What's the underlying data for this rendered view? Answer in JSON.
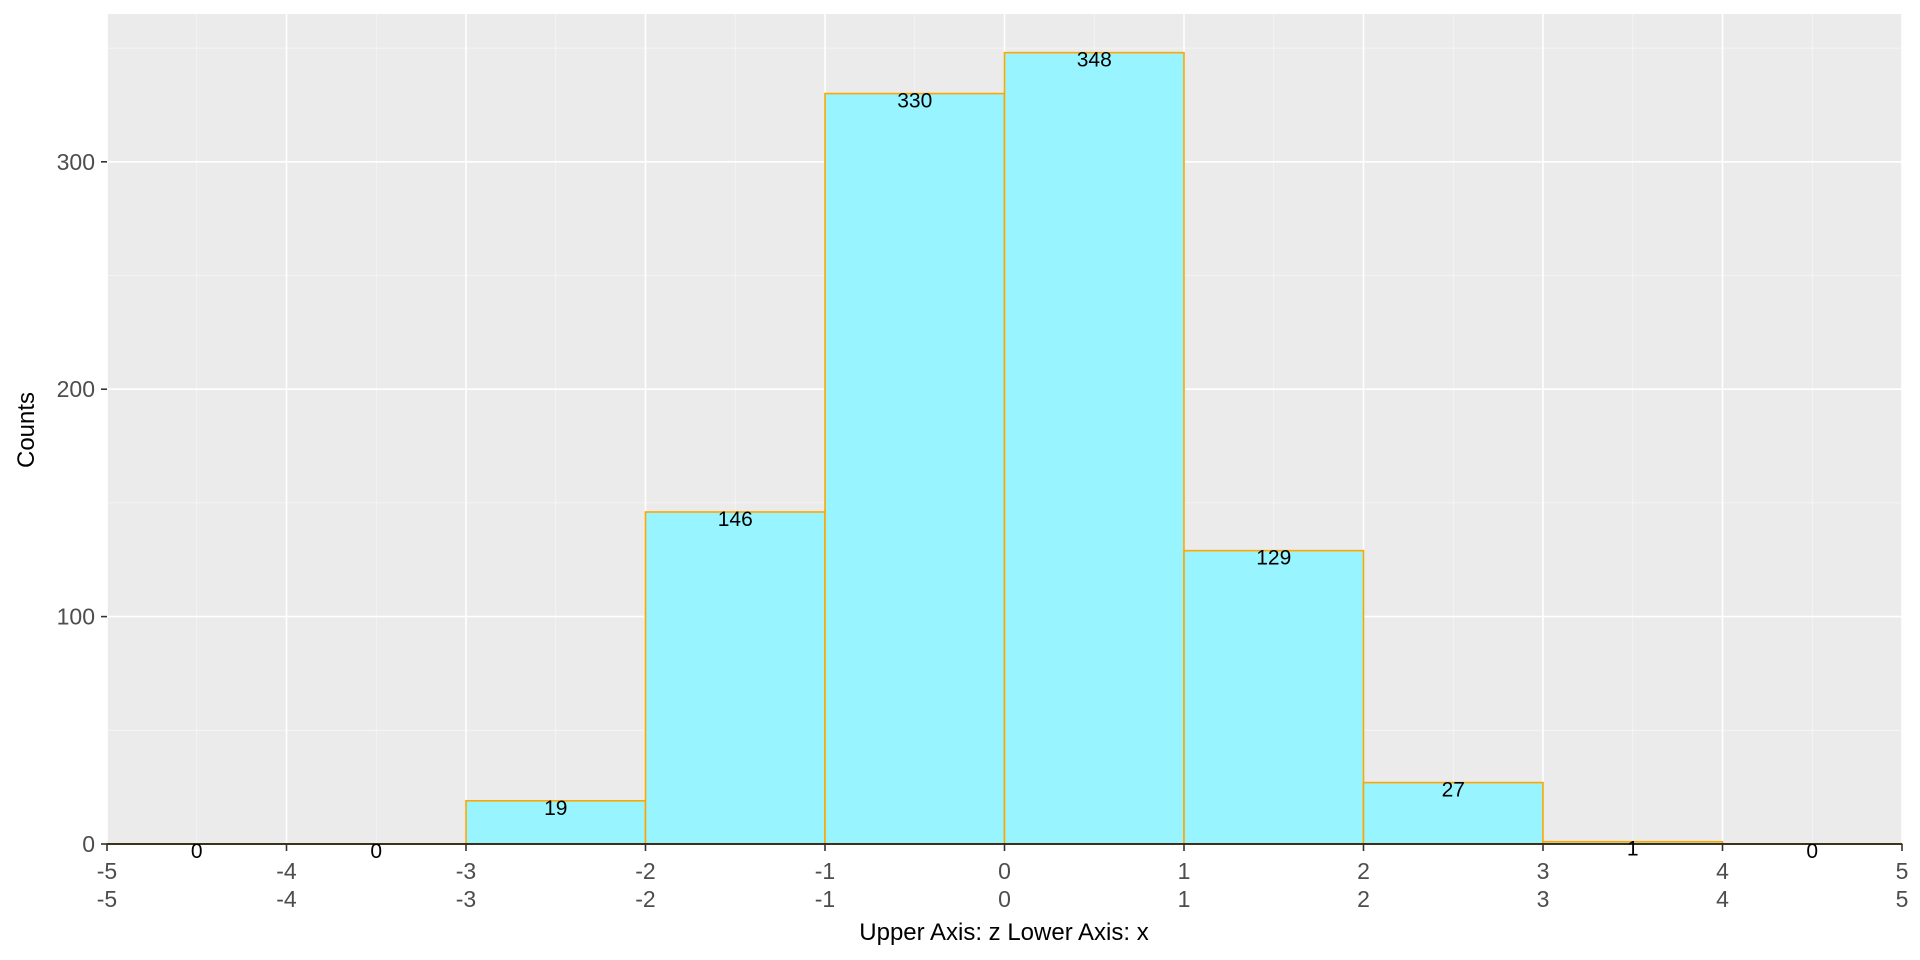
{
  "chart_data": {
    "type": "bar",
    "bins": [
      {
        "from": -5,
        "to": -4,
        "count": 0
      },
      {
        "from": -4,
        "to": -3,
        "count": 0
      },
      {
        "from": -3,
        "to": -2,
        "count": 19
      },
      {
        "from": -2,
        "to": -1,
        "count": 146
      },
      {
        "from": -1,
        "to": 0,
        "count": 330
      },
      {
        "from": 0,
        "to": 1,
        "count": 348
      },
      {
        "from": 1,
        "to": 2,
        "count": 129
      },
      {
        "from": 2,
        "to": 3,
        "count": 27
      },
      {
        "from": 3,
        "to": 4,
        "count": 1
      },
      {
        "from": 4,
        "to": 5,
        "count": 0
      }
    ],
    "values": [
      0,
      0,
      19,
      146,
      330,
      348,
      129,
      27,
      1,
      0
    ],
    "title": "",
    "xlabel": "Upper Axis: z Lower Axis:  x",
    "ylabel": "Counts",
    "xlim": [
      -5,
      5
    ],
    "ylim": [
      0,
      365
    ],
    "x_ticks_upper": [
      "-5",
      "-4",
      "-3",
      "-2",
      "-1",
      "0",
      "1",
      "2",
      "3",
      "4",
      "5"
    ],
    "x_ticks_lower": [
      "-5",
      "-4",
      "-3",
      "-2",
      "-1",
      "0",
      "1",
      "2",
      "3",
      "4",
      "5"
    ],
    "y_ticks": [
      0,
      100,
      200,
      300
    ],
    "grid": true,
    "colors": {
      "panel": "#ebebeb",
      "grid_major": "#ffffff",
      "bar_fill": "#98f5ff",
      "bar_outline": "#ffa500"
    }
  }
}
